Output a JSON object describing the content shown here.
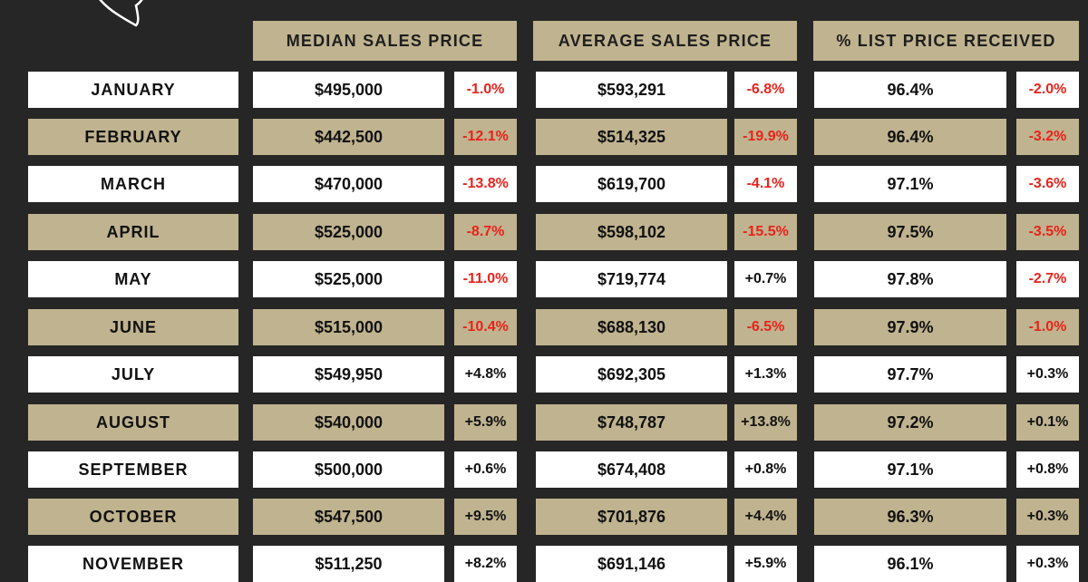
{
  "headers": {
    "median": "MEDIAN SALES PRICE",
    "average": "AVERAGE SALES PRICE",
    "list_pct": "% LIST PRICE RECEIVED"
  },
  "rows": [
    {
      "month": "JANUARY",
      "median": "$495,000",
      "median_chg": "-1.0%",
      "average": "$593,291",
      "average_chg": "-6.8%",
      "list_pct": "96.4%",
      "list_chg": "-2.0%"
    },
    {
      "month": "FEBRUARY",
      "median": "$442,500",
      "median_chg": "-12.1%",
      "average": "$514,325",
      "average_chg": "-19.9%",
      "list_pct": "96.4%",
      "list_chg": "-3.2%"
    },
    {
      "month": "MARCH",
      "median": "$470,000",
      "median_chg": "-13.8%",
      "average": "$619,700",
      "average_chg": "-4.1%",
      "list_pct": "97.1%",
      "list_chg": "-3.6%"
    },
    {
      "month": "APRIL",
      "median": "$525,000",
      "median_chg": "-8.7%",
      "average": "$598,102",
      "average_chg": "-15.5%",
      "list_pct": "97.5%",
      "list_chg": "-3.5%"
    },
    {
      "month": "MAY",
      "median": "$525,000",
      "median_chg": "-11.0%",
      "average": "$719,774",
      "average_chg": "+0.7%",
      "list_pct": "97.8%",
      "list_chg": "-2.7%"
    },
    {
      "month": "JUNE",
      "median": "$515,000",
      "median_chg": "-10.4%",
      "average": "$688,130",
      "average_chg": "-6.5%",
      "list_pct": "97.9%",
      "list_chg": "-1.0%"
    },
    {
      "month": "JULY",
      "median": "$549,950",
      "median_chg": "+4.8%",
      "average": "$692,305",
      "average_chg": "+1.3%",
      "list_pct": "97.7%",
      "list_chg": "+0.3%"
    },
    {
      "month": "AUGUST",
      "median": "$540,000",
      "median_chg": "+5.9%",
      "average": "$748,787",
      "average_chg": "+13.8%",
      "list_pct": "97.2%",
      "list_chg": "+0.1%"
    },
    {
      "month": "SEPTEMBER",
      "median": "$500,000",
      "median_chg": "+0.6%",
      "average": "$674,408",
      "average_chg": "+0.8%",
      "list_pct": "97.1%",
      "list_chg": "+0.8%"
    },
    {
      "month": "OCTOBER",
      "median": "$547,500",
      "median_chg": "+9.5%",
      "average": "$701,876",
      "average_chg": "+4.4%",
      "list_pct": "96.3%",
      "list_chg": "+0.3%"
    },
    {
      "month": "NOVEMBER",
      "median": "$511,250",
      "median_chg": "+8.2%",
      "average": "$691,146",
      "average_chg": "+5.9%",
      "list_pct": "96.1%",
      "list_chg": "+0.3%"
    }
  ],
  "colors": {
    "background": "#262626",
    "tan": "#c0b38f",
    "negative": "#e8231b"
  },
  "icons": [
    "heart-outline-icon"
  ]
}
